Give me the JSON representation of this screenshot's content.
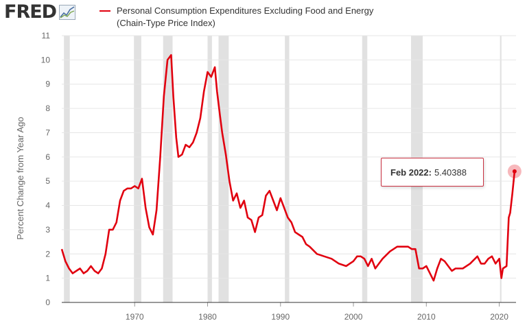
{
  "header": {
    "logo_text": "FRED",
    "logo_icon": "fred-chart-logo-icon",
    "legend_line1": "Personal Consumption Expenditures Excluding Food and Energy",
    "legend_line2": "(Chain-Type Price Index)"
  },
  "tooltip": {
    "label": "Feb 2022:",
    "value": "5.40388"
  },
  "colors": {
    "series": "#e1000f",
    "recession": "#e1e1e1",
    "grid": "#e6e6e6",
    "text": "#666666"
  },
  "chart_data": {
    "type": "line",
    "title": "Personal Consumption Expenditures Excluding Food and Energy (Chain-Type Price Index)",
    "ylabel": "Percent Change from Year Ago",
    "xlabel": "",
    "ylim": [
      0,
      11
    ],
    "xlim": [
      1960.0,
      2022.3
    ],
    "yticks": [
      0,
      1,
      2,
      3,
      4,
      5,
      6,
      7,
      8,
      9,
      10,
      11
    ],
    "xticks": [
      1970,
      1980,
      1990,
      2000,
      2010,
      2020
    ],
    "grid": true,
    "legend_position": "top",
    "recessions": [
      [
        1960.3,
        1961.1
      ],
      [
        1969.9,
        1970.9
      ],
      [
        1973.9,
        1975.2
      ],
      [
        1980.0,
        1980.6
      ],
      [
        1981.5,
        1982.9
      ],
      [
        1990.6,
        1991.2
      ],
      [
        2001.2,
        2001.9
      ],
      [
        2007.9,
        2009.5
      ],
      [
        2020.1,
        2020.3
      ]
    ],
    "series": [
      {
        "name": "Personal Consumption Expenditures Excluding Food and Energy (Chain-Type Price Index)",
        "x": [
          1960.0,
          1960.5,
          1961.0,
          1961.5,
          1962.0,
          1962.5,
          1963.0,
          1963.5,
          1964.0,
          1964.5,
          1965.0,
          1965.5,
          1966.0,
          1966.5,
          1967.0,
          1967.5,
          1968.0,
          1968.5,
          1969.0,
          1969.5,
          1970.0,
          1970.5,
          1971.0,
          1971.5,
          1972.0,
          1972.5,
          1973.0,
          1973.5,
          1974.0,
          1974.5,
          1975.0,
          1975.3,
          1975.7,
          1976.0,
          1976.5,
          1977.0,
          1977.5,
          1978.0,
          1978.5,
          1979.0,
          1979.5,
          1980.0,
          1980.5,
          1981.0,
          1981.3,
          1981.7,
          1982.0,
          1982.5,
          1983.0,
          1983.5,
          1984.0,
          1984.5,
          1985.0,
          1985.5,
          1986.0,
          1986.5,
          1987.0,
          1987.5,
          1988.0,
          1988.5,
          1989.0,
          1989.5,
          1990.0,
          1990.5,
          1991.0,
          1991.5,
          1992.0,
          1992.5,
          1993.0,
          1993.5,
          1994.0,
          1995.0,
          1996.0,
          1997.0,
          1998.0,
          1999.0,
          2000.0,
          2000.5,
          2001.0,
          2001.5,
          2002.0,
          2002.5,
          2003.0,
          2003.5,
          2004.0,
          2005.0,
          2006.0,
          2007.0,
          2007.5,
          2008.0,
          2008.5,
          2009.0,
          2009.5,
          2010.0,
          2010.5,
          2011.0,
          2011.5,
          2012.0,
          2012.5,
          2013.0,
          2013.5,
          2014.0,
          2015.0,
          2016.0,
          2017.0,
          2017.5,
          2018.0,
          2018.5,
          2019.0,
          2019.5,
          2020.0,
          2020.3,
          2020.5,
          2021.0,
          2021.3,
          2021.5,
          2021.8,
          2022.1
        ],
        "values": [
          2.2,
          1.7,
          1.4,
          1.2,
          1.3,
          1.4,
          1.2,
          1.3,
          1.5,
          1.3,
          1.2,
          1.4,
          2.0,
          3.0,
          3.0,
          3.3,
          4.2,
          4.6,
          4.7,
          4.7,
          4.8,
          4.7,
          5.1,
          3.9,
          3.1,
          2.8,
          3.8,
          6.0,
          8.5,
          10.0,
          10.2,
          8.5,
          6.8,
          6.0,
          6.1,
          6.5,
          6.4,
          6.6,
          7.0,
          7.6,
          8.7,
          9.5,
          9.3,
          9.7,
          8.7,
          7.7,
          7.0,
          6.1,
          5.0,
          4.2,
          4.5,
          3.9,
          4.2,
          3.5,
          3.4,
          2.9,
          3.5,
          3.6,
          4.4,
          4.6,
          4.2,
          3.8,
          4.3,
          3.9,
          3.5,
          3.3,
          2.9,
          2.8,
          2.7,
          2.4,
          2.3,
          2.0,
          1.9,
          1.8,
          1.6,
          1.5,
          1.7,
          1.9,
          1.9,
          1.8,
          1.5,
          1.8,
          1.4,
          1.6,
          1.8,
          2.1,
          2.3,
          2.3,
          2.3,
          2.2,
          2.2,
          1.4,
          1.4,
          1.5,
          1.2,
          0.9,
          1.4,
          1.8,
          1.7,
          1.5,
          1.3,
          1.4,
          1.4,
          1.6,
          1.9,
          1.6,
          1.6,
          1.8,
          1.9,
          1.6,
          1.8,
          1.0,
          1.4,
          1.5,
          3.5,
          3.7,
          4.5,
          5.40388
        ]
      }
    ],
    "highlight_point": {
      "x": 2022.1,
      "y": 5.40388
    }
  }
}
